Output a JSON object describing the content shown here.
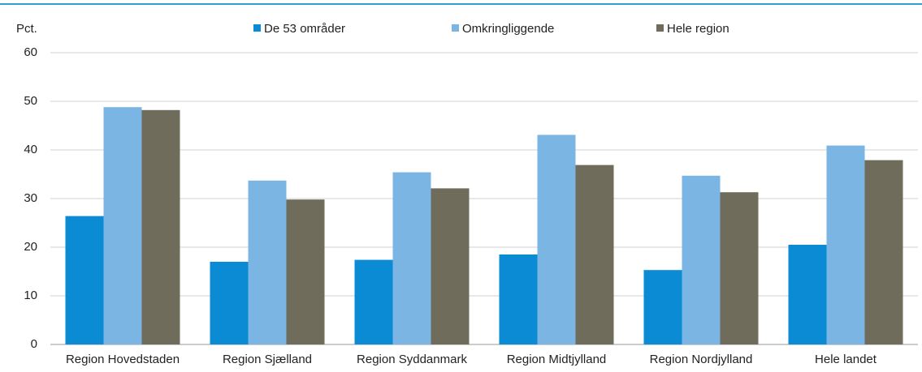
{
  "chart_data": {
    "type": "bar",
    "y_label": "Pct.",
    "categories": [
      "Region Hovedstaden",
      "Region Sjælland",
      "Region Syddanmark",
      "Region Midtjylland",
      "Region Nordjylland",
      "Hele landet"
    ],
    "series": [
      {
        "name": "De 53 områder",
        "color": "#0a8bd3",
        "values": [
          26.4,
          17.0,
          17.4,
          18.5,
          15.3,
          20.5
        ]
      },
      {
        "name": "Omkringliggende",
        "color": "#7ab5e3",
        "values": [
          48.8,
          33.7,
          35.4,
          43.1,
          34.7,
          40.9
        ]
      },
      {
        "name": "Hele region",
        "color": "#6f6c5b",
        "values": [
          48.2,
          29.8,
          32.1,
          36.9,
          31.3,
          37.9
        ]
      }
    ],
    "ylim": [
      0,
      60
    ],
    "yticks": [
      0,
      10,
      20,
      30,
      40,
      50,
      60
    ],
    "grid": true,
    "legend": "top"
  }
}
